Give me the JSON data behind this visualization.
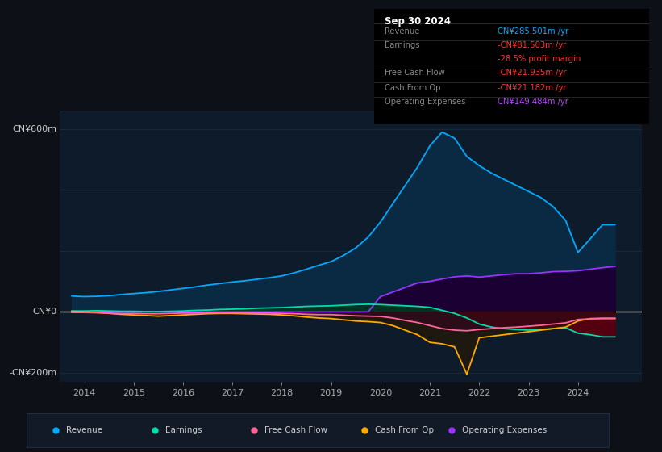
{
  "bg_color": "#0d1117",
  "plot_bg_color": "#0d1b2a",
  "ylim": [
    -230,
    660
  ],
  "xlim": [
    2013.5,
    2025.3
  ],
  "xticks": [
    2014,
    2015,
    2016,
    2017,
    2018,
    2019,
    2020,
    2021,
    2022,
    2023,
    2024
  ],
  "y_labels": [
    {
      "text": "CN¥600m",
      "y": 600
    },
    {
      "text": "CN¥0",
      "y": 0
    },
    {
      "text": "-CN¥200m",
      "y": -200
    }
  ],
  "info_box": {
    "title": "Sep 30 2024",
    "rows": [
      {
        "label": "Revenue",
        "value": "CN¥285.501m /yr",
        "value_color": "#00aaff"
      },
      {
        "label": "Earnings",
        "value": "-CN¥81.503m /yr",
        "value_color": "#ff3333"
      },
      {
        "label": "",
        "value": "-28.5% profit margin",
        "value_color": "#ff3333"
      },
      {
        "label": "Free Cash Flow",
        "value": "-CN¥21.935m /yr",
        "value_color": "#ff3333"
      },
      {
        "label": "Cash From Op",
        "value": "-CN¥21.182m /yr",
        "value_color": "#ff3333"
      },
      {
        "label": "Operating Expenses",
        "value": "CN¥149.484m /yr",
        "value_color": "#bb44ff"
      }
    ]
  },
  "series": {
    "revenue": {
      "color": "#00aaff",
      "fill_color": "#0a2a44",
      "label": "Revenue",
      "x": [
        2013.75,
        2014.0,
        2014.25,
        2014.5,
        2014.75,
        2015.0,
        2015.25,
        2015.5,
        2015.75,
        2016.0,
        2016.25,
        2016.5,
        2016.75,
        2017.0,
        2017.25,
        2017.5,
        2017.75,
        2018.0,
        2018.25,
        2018.5,
        2018.75,
        2019.0,
        2019.25,
        2019.5,
        2019.75,
        2020.0,
        2020.25,
        2020.5,
        2020.75,
        2021.0,
        2021.25,
        2021.5,
        2021.75,
        2022.0,
        2022.25,
        2022.5,
        2022.75,
        2023.0,
        2023.25,
        2023.5,
        2023.75,
        2024.0,
        2024.25,
        2024.5,
        2024.75
      ],
      "y": [
        52,
        50,
        51,
        53,
        57,
        60,
        63,
        67,
        72,
        77,
        82,
        88,
        93,
        98,
        102,
        107,
        112,
        118,
        128,
        140,
        153,
        165,
        185,
        210,
        245,
        295,
        355,
        415,
        475,
        545,
        590,
        570,
        510,
        480,
        455,
        435,
        415,
        395,
        375,
        345,
        300,
        195,
        240,
        286,
        286
      ]
    },
    "earnings": {
      "color": "#00ddaa",
      "fill_color": "#003322",
      "label": "Earnings",
      "x": [
        2013.75,
        2014.0,
        2014.25,
        2014.5,
        2014.75,
        2015.0,
        2015.25,
        2015.5,
        2015.75,
        2016.0,
        2016.25,
        2016.5,
        2016.75,
        2017.0,
        2017.25,
        2017.5,
        2017.75,
        2018.0,
        2018.25,
        2018.5,
        2018.75,
        2019.0,
        2019.25,
        2019.5,
        2019.75,
        2020.0,
        2020.25,
        2020.5,
        2020.75,
        2021.0,
        2021.25,
        2021.5,
        2021.75,
        2022.0,
        2022.25,
        2022.5,
        2022.75,
        2023.0,
        2023.25,
        2023.5,
        2023.75,
        2024.0,
        2024.25,
        2024.5,
        2024.75
      ],
      "y": [
        3,
        3,
        4,
        3,
        2,
        2,
        1,
        1,
        2,
        3,
        5,
        6,
        8,
        9,
        10,
        12,
        13,
        14,
        16,
        18,
        19,
        20,
        22,
        24,
        25,
        24,
        22,
        20,
        18,
        15,
        5,
        -5,
        -20,
        -40,
        -50,
        -55,
        -58,
        -60,
        -58,
        -55,
        -52,
        -70,
        -75,
        -82,
        -82
      ]
    },
    "free_cash_flow": {
      "color": "#ff6699",
      "fill_color": "#3a0020",
      "label": "Free Cash Flow",
      "x": [
        2013.75,
        2014.0,
        2014.25,
        2014.5,
        2014.75,
        2015.0,
        2015.25,
        2015.5,
        2015.75,
        2016.0,
        2016.25,
        2016.5,
        2016.75,
        2017.0,
        2017.25,
        2017.5,
        2017.75,
        2018.0,
        2018.25,
        2018.5,
        2018.75,
        2019.0,
        2019.25,
        2019.5,
        2019.75,
        2020.0,
        2020.25,
        2020.5,
        2020.75,
        2021.0,
        2021.25,
        2021.5,
        2021.75,
        2022.0,
        2022.25,
        2022.5,
        2022.75,
        2023.0,
        2023.25,
        2023.5,
        2023.75,
        2024.0,
        2024.25,
        2024.5,
        2024.75
      ],
      "y": [
        -2,
        -2,
        -3,
        -4,
        -5,
        -5,
        -6,
        -6,
        -5,
        -4,
        -4,
        -3,
        -3,
        -3,
        -3,
        -4,
        -4,
        -5,
        -6,
        -8,
        -9,
        -9,
        -11,
        -13,
        -14,
        -15,
        -20,
        -28,
        -35,
        -45,
        -55,
        -60,
        -62,
        -58,
        -55,
        -52,
        -50,
        -47,
        -44,
        -40,
        -36,
        -25,
        -23,
        -22,
        -22
      ]
    },
    "cash_from_op": {
      "color": "#ffaa00",
      "fill_color": "#2a1800",
      "label": "Cash From Op",
      "x": [
        2013.75,
        2014.0,
        2014.25,
        2014.5,
        2014.75,
        2015.0,
        2015.25,
        2015.5,
        2015.75,
        2016.0,
        2016.25,
        2016.5,
        2016.75,
        2017.0,
        2017.25,
        2017.5,
        2017.75,
        2018.0,
        2018.25,
        2018.5,
        2018.75,
        2019.0,
        2019.25,
        2019.5,
        2019.75,
        2020.0,
        2020.25,
        2020.5,
        2020.75,
        2021.0,
        2021.25,
        2021.5,
        2021.75,
        2022.0,
        2022.25,
        2022.5,
        2022.75,
        2023.0,
        2023.25,
        2023.5,
        2023.75,
        2024.0,
        2024.25,
        2024.5,
        2024.75
      ],
      "y": [
        2,
        0,
        -2,
        -5,
        -8,
        -10,
        -12,
        -14,
        -12,
        -10,
        -8,
        -6,
        -5,
        -5,
        -6,
        -7,
        -8,
        -10,
        -13,
        -17,
        -20,
        -22,
        -26,
        -30,
        -32,
        -35,
        -45,
        -60,
        -75,
        -100,
        -105,
        -115,
        -205,
        -85,
        -80,
        -75,
        -70,
        -65,
        -60,
        -55,
        -50,
        -30,
        -22,
        -21,
        -21
      ]
    },
    "operating_expenses": {
      "color": "#9933ff",
      "fill_color": "#1a0033",
      "label": "Operating Expenses",
      "x": [
        2013.75,
        2014.0,
        2014.25,
        2014.5,
        2014.75,
        2015.0,
        2015.25,
        2015.5,
        2015.75,
        2016.0,
        2016.25,
        2016.5,
        2016.75,
        2017.0,
        2017.25,
        2017.5,
        2017.75,
        2018.0,
        2018.25,
        2018.5,
        2018.75,
        2019.0,
        2019.25,
        2019.5,
        2019.75,
        2020.0,
        2020.25,
        2020.5,
        2020.75,
        2021.0,
        2021.25,
        2021.5,
        2021.75,
        2022.0,
        2022.25,
        2022.5,
        2022.75,
        2023.0,
        2023.25,
        2023.5,
        2023.75,
        2024.0,
        2024.25,
        2024.5,
        2024.75
      ],
      "y": [
        0,
        0,
        0,
        0,
        0,
        0,
        0,
        0,
        0,
        0,
        0,
        0,
        0,
        0,
        0,
        0,
        0,
        0,
        0,
        0,
        0,
        0,
        0,
        0,
        0,
        50,
        65,
        80,
        95,
        100,
        108,
        115,
        118,
        114,
        118,
        122,
        125,
        125,
        128,
        132,
        133,
        135,
        140,
        145,
        149
      ]
    }
  },
  "legend": [
    {
      "label": "Revenue",
      "color": "#00aaff"
    },
    {
      "label": "Earnings",
      "color": "#00ddaa"
    },
    {
      "label": "Free Cash Flow",
      "color": "#ff6699"
    },
    {
      "label": "Cash From Op",
      "color": "#ffaa00"
    },
    {
      "label": "Operating Expenses",
      "color": "#9933ff"
    }
  ],
  "grid_lines": [
    600,
    400,
    200,
    0,
    -200
  ],
  "zero_line_color": "#ffffff",
  "grid_color": "#1e3044"
}
